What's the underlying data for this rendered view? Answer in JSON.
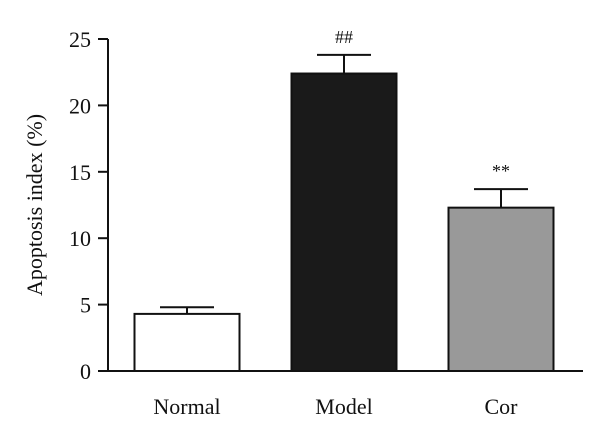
{
  "chart_data": {
    "type": "bar",
    "title": "",
    "xlabel": "",
    "ylabel": "Apoptosis index (%)",
    "ylim": [
      0,
      25
    ],
    "yticks": [
      0,
      5,
      10,
      15,
      20,
      25
    ],
    "grid": false,
    "categories": [
      "Normal",
      "Model",
      "Cor"
    ],
    "values": [
      4.3,
      22.4,
      12.3
    ],
    "errors": [
      0.5,
      1.4,
      1.4
    ],
    "bar_colors": [
      "#ffffff",
      "#1a1a1a",
      "#999999"
    ],
    "annotations": [
      "",
      "##",
      "**"
    ]
  }
}
